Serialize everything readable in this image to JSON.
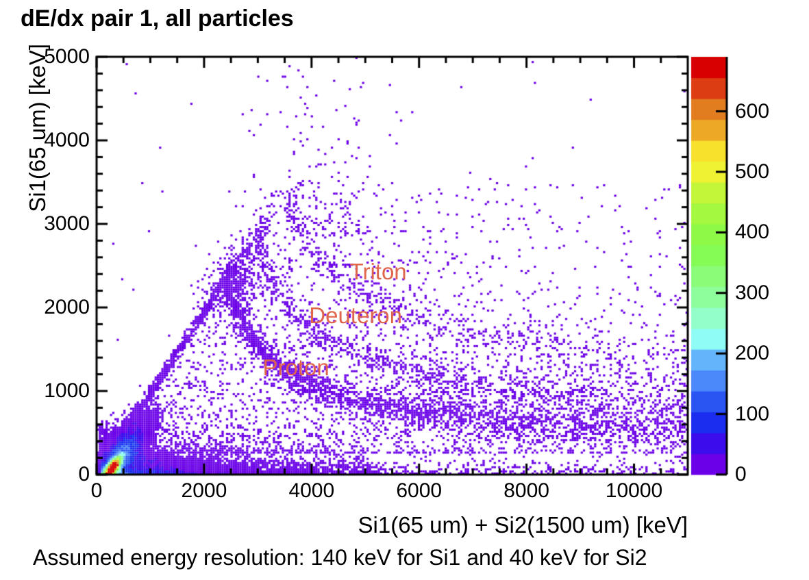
{
  "page": {
    "background": "#ffffff"
  },
  "chart_data": {
    "type": "heatmap",
    "title": "dE/dx pair 1, all particles",
    "xlabel": "Si1(65 um) + Si2(1500 um) [keV]",
    "ylabel": "Si1(65 um) [keV]",
    "footnote": "Assumed energy resolution: 140 keV for Si1 and 40 keV for Si2",
    "xlim": [
      0,
      11000
    ],
    "ylim": [
      0,
      5000
    ],
    "zmax": 690,
    "grid": false,
    "x_major_ticks": [
      0,
      2000,
      4000,
      6000,
      8000,
      10000
    ],
    "x_minor_step": 500,
    "y_major_ticks": [
      0,
      1000,
      2000,
      3000,
      4000,
      5000
    ],
    "y_minor_step": 200,
    "annotation_color": "#e0654d",
    "annotations": [
      {
        "text": "Triton",
        "x": 5240,
        "y": 2430
      },
      {
        "text": "Deuteron",
        "x": 4820,
        "y": 1900
      },
      {
        "text": "Proton",
        "x": 3710,
        "y": 1280
      }
    ],
    "colorbar": {
      "position": "right",
      "ticks": [
        0,
        100,
        200,
        300,
        400,
        500,
        600
      ],
      "levels": 20,
      "palette": [
        "#6b00e8",
        "#3c0cec",
        "#1b2eef",
        "#2a55f3",
        "#4b89fa",
        "#63b4fb",
        "#8ffdf5",
        "#93fec9",
        "#8efd9c",
        "#8afc78",
        "#85fb55",
        "#8efa47",
        "#a4f83f",
        "#c3f539",
        "#eef233",
        "#f8e12c",
        "#eda826",
        "#e17d1f",
        "#dc3d12",
        "#d80000"
      ]
    },
    "density_model": {
      "seed": 42,
      "bins": {
        "nx": 265,
        "ny": 200
      },
      "count_scale": 2.2,
      "components": [
        {
          "kind": "gauss",
          "name": "origin-blob-broad",
          "n": 14000,
          "cx": 430,
          "cy": 190,
          "su": 330,
          "sv": 120,
          "angle_deg": 38
        },
        {
          "kind": "gauss",
          "name": "origin-blob-core",
          "n": 12000,
          "cx": 300,
          "cy": 80,
          "su": 115,
          "sv": 48,
          "angle_deg": 38
        },
        {
          "kind": "gauss",
          "name": "low-energy-wedge",
          "n": 2200,
          "cx": 820,
          "cy": 210,
          "su": 430,
          "sv": 105,
          "angle_deg": -18
        },
        {
          "kind": "strip",
          "name": "bottom-strip",
          "n": 8000,
          "x0": 80,
          "x1": 5300,
          "xscale": 1300,
          "yscale": 85
        },
        {
          "kind": "strip",
          "name": "bottom-strip-tail",
          "n": 320,
          "x0": 4500,
          "x1": 11000,
          "xscale": 4200,
          "yscale": 70
        },
        {
          "kind": "diag",
          "name": "si1-stop-line",
          "n": 750,
          "x0": 160,
          "x1": 2550,
          "slope": 0.97,
          "intercept": 0,
          "sigma": 45
        },
        {
          "kind": "diag",
          "name": "si1-stop-line-ext",
          "n": 90,
          "x0": 2550,
          "x1": 3300,
          "slope": 0.97,
          "intercept": 0,
          "sigma": 90
        },
        {
          "kind": "gauss",
          "name": "apex-cluster",
          "n": 420,
          "cx": 2560,
          "cy": 2260,
          "su": 300,
          "sv": 200,
          "angle_deg": 20
        },
        {
          "kind": "ridge",
          "name": "proton-band",
          "n": 2600,
          "halo": 0.25,
          "sigma0": 55,
          "sigma1": 150,
          "bias": 1.35,
          "points": [
            [
              2400,
              2320
            ],
            [
              2550,
              2050
            ],
            [
              2700,
              1840
            ],
            [
              2900,
              1640
            ],
            [
              3100,
              1480
            ],
            [
              3400,
              1300
            ],
            [
              3700,
              1170
            ],
            [
              4000,
              1070
            ],
            [
              4400,
              975
            ],
            [
              4800,
              905
            ],
            [
              5200,
              850
            ],
            [
              5600,
              805
            ],
            [
              6000,
              762
            ],
            [
              6500,
              718
            ],
            [
              7000,
              680
            ],
            [
              7500,
              648
            ],
            [
              8000,
              622
            ],
            [
              8500,
              600
            ],
            [
              9000,
              580
            ],
            [
              9500,
              562
            ],
            [
              10000,
              548
            ],
            [
              10500,
              535
            ],
            [
              11000,
              522
            ]
          ]
        },
        {
          "kind": "ridge",
          "name": "deuteron-band",
          "n": 1050,
          "halo": 0.3,
          "sigma0": 60,
          "sigma1": 170,
          "bias": 1.25,
          "points": [
            [
              3000,
              2830
            ],
            [
              3150,
              2480
            ],
            [
              3300,
              2280
            ],
            [
              3500,
              2080
            ],
            [
              3700,
              1920
            ],
            [
              4000,
              1750
            ],
            [
              4300,
              1620
            ],
            [
              4700,
              1490
            ],
            [
              5100,
              1390
            ],
            [
              5500,
              1310
            ],
            [
              6000,
              1225
            ],
            [
              6500,
              1155
            ],
            [
              7000,
              1098
            ],
            [
              7500,
              1048
            ],
            [
              8000,
              1005
            ],
            [
              8500,
              968
            ],
            [
              9000,
              935
            ],
            [
              9500,
              905
            ],
            [
              10000,
              878
            ],
            [
              10500,
              855
            ],
            [
              11000,
              833
            ]
          ]
        },
        {
          "kind": "ridge",
          "name": "triton-band",
          "n": 620,
          "halo": 0.35,
          "sigma0": 65,
          "sigma1": 190,
          "bias": 1.2,
          "points": [
            [
              3560,
              3300
            ],
            [
              3700,
              3000
            ],
            [
              3900,
              2780
            ],
            [
              4100,
              2600
            ],
            [
              4400,
              2420
            ],
            [
              4700,
              2280
            ],
            [
              5000,
              2160
            ],
            [
              5400,
              2030
            ],
            [
              5800,
              1925
            ],
            [
              6200,
              1835
            ],
            [
              6600,
              1755
            ],
            [
              7000,
              1685
            ],
            [
              7500,
              1610
            ],
            [
              8000,
              1545
            ],
            [
              8500,
              1488
            ],
            [
              9000,
              1438
            ],
            [
              9500,
              1393
            ],
            [
              10000,
              1352
            ],
            [
              10500,
              1315
            ],
            [
              11000,
              1282
            ]
          ]
        },
        {
          "kind": "plume",
          "name": "vertical-plume",
          "n": 200,
          "cx": 4150,
          "sx": 700,
          "xmin": 2600,
          "y0": 2850,
          "yscale": 700,
          "ymax": 5000
        },
        {
          "kind": "haze",
          "name": "coincidence-haze",
          "n": 2100,
          "x0": 1300,
          "x1": 11000,
          "xscale": 5200,
          "y0": 250,
          "y1": 3500,
          "ypow": 1.9
        },
        {
          "kind": "uniform",
          "name": "outliers",
          "n": 170,
          "x0": 300,
          "x1": 11000,
          "y0": 150,
          "y1": 5000,
          "yscale": 2200
        }
      ]
    }
  }
}
